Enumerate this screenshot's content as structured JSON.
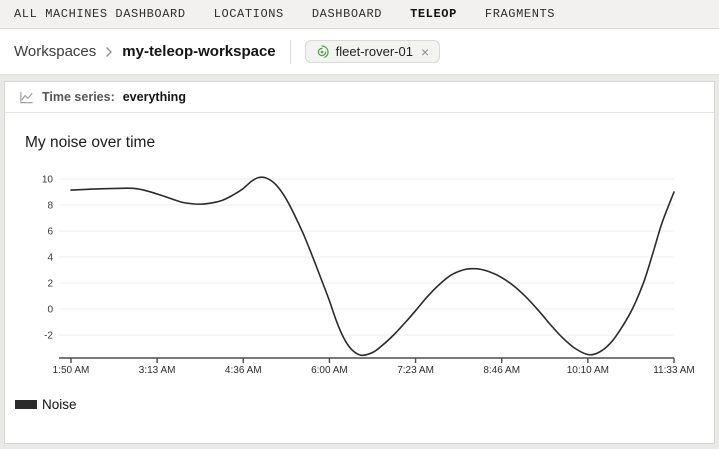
{
  "nav": {
    "items": [
      {
        "label": "ALL MACHINES DASHBOARD",
        "active": false
      },
      {
        "label": "LOCATIONS",
        "active": false
      },
      {
        "label": "DASHBOARD",
        "active": false
      },
      {
        "label": "TELEOP",
        "active": true
      },
      {
        "label": "FRAGMENTS",
        "active": false
      }
    ]
  },
  "breadcrumb": {
    "root": "Workspaces",
    "current": "my-teleop-workspace"
  },
  "machine_chip": {
    "label": "fleet-rover-01",
    "close_label": "×",
    "status_color": "#4a9e4a"
  },
  "panel": {
    "header_prefix": "Time series:",
    "header_value": "everything"
  },
  "chart_data": {
    "type": "line",
    "title": "My noise over time",
    "xlabel": "",
    "ylabel": "",
    "x_ticks": [
      "1:50 AM",
      "3:13 AM",
      "4:36 AM",
      "6:00 AM",
      "7:23 AM",
      "8:46 AM",
      "10:10 AM",
      "11:33 AM"
    ],
    "y_ticks": [
      10,
      8,
      6,
      4,
      2,
      0,
      -2
    ],
    "ylim": [
      -3.8,
      10.6
    ],
    "grid": "horizontal",
    "legend_position": "bottom-left",
    "series": [
      {
        "name": "Noise",
        "color": "#2b2b2b",
        "points": [
          [
            0.0,
            9.15
          ],
          [
            0.035,
            9.22
          ],
          [
            0.075,
            9.28
          ],
          [
            0.11,
            9.25
          ],
          [
            0.143,
            8.85
          ],
          [
            0.165,
            8.5
          ],
          [
            0.185,
            8.2
          ],
          [
            0.205,
            8.08
          ],
          [
            0.225,
            8.1
          ],
          [
            0.25,
            8.35
          ],
          [
            0.27,
            8.8
          ],
          [
            0.285,
            9.25
          ],
          [
            0.3,
            9.85
          ],
          [
            0.312,
            10.12
          ],
          [
            0.325,
            10.05
          ],
          [
            0.34,
            9.55
          ],
          [
            0.355,
            8.6
          ],
          [
            0.37,
            7.3
          ],
          [
            0.385,
            5.8
          ],
          [
            0.4,
            4.1
          ],
          [
            0.415,
            2.3
          ],
          [
            0.428,
            0.7
          ],
          [
            0.44,
            -0.9
          ],
          [
            0.452,
            -2.2
          ],
          [
            0.465,
            -3.1
          ],
          [
            0.481,
            -3.55
          ],
          [
            0.5,
            -3.35
          ],
          [
            0.515,
            -2.85
          ],
          [
            0.535,
            -2.0
          ],
          [
            0.555,
            -1.0
          ],
          [
            0.572,
            -0.1
          ],
          [
            0.59,
            0.9
          ],
          [
            0.61,
            1.85
          ],
          [
            0.63,
            2.6
          ],
          [
            0.65,
            3.0
          ],
          [
            0.665,
            3.1
          ],
          [
            0.68,
            3.05
          ],
          [
            0.7,
            2.75
          ],
          [
            0.715,
            2.4
          ],
          [
            0.735,
            1.75
          ],
          [
            0.755,
            0.9
          ],
          [
            0.775,
            -0.1
          ],
          [
            0.795,
            -1.2
          ],
          [
            0.815,
            -2.2
          ],
          [
            0.835,
            -3.0
          ],
          [
            0.857,
            -3.5
          ],
          [
            0.875,
            -3.35
          ],
          [
            0.895,
            -2.6
          ],
          [
            0.915,
            -1.3
          ],
          [
            0.933,
            0.2
          ],
          [
            0.95,
            2.1
          ],
          [
            0.965,
            4.3
          ],
          [
            0.98,
            6.6
          ],
          [
            1.0,
            9.0
          ]
        ]
      }
    ]
  }
}
